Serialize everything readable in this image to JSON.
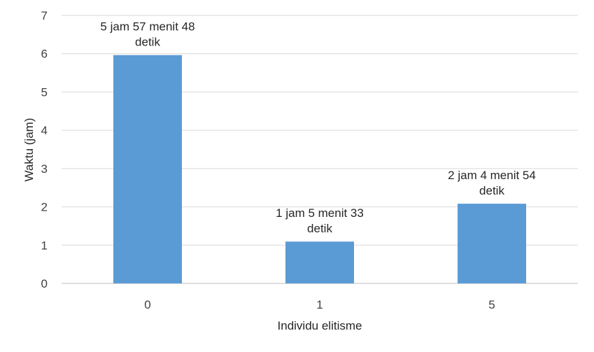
{
  "chart_data": {
    "type": "bar",
    "categories": [
      "0",
      "1",
      "5"
    ],
    "values": [
      5.963,
      1.0925,
      2.0817
    ],
    "data_labels": [
      [
        "5 jam 57 menit 48",
        "detik"
      ],
      [
        "1 jam 5 menit 33",
        "detik"
      ],
      [
        "2 jam 4 menit 54",
        "detik"
      ]
    ],
    "xlabel": "Individu elitisme",
    "ylabel": "Waktu (jam)",
    "ylim": [
      0,
      7
    ],
    "yticks": [
      "0",
      "1",
      "2",
      "3",
      "4",
      "5",
      "6",
      "7"
    ],
    "grid": true,
    "legend": "none",
    "bar_color": "#5b9bd5"
  }
}
